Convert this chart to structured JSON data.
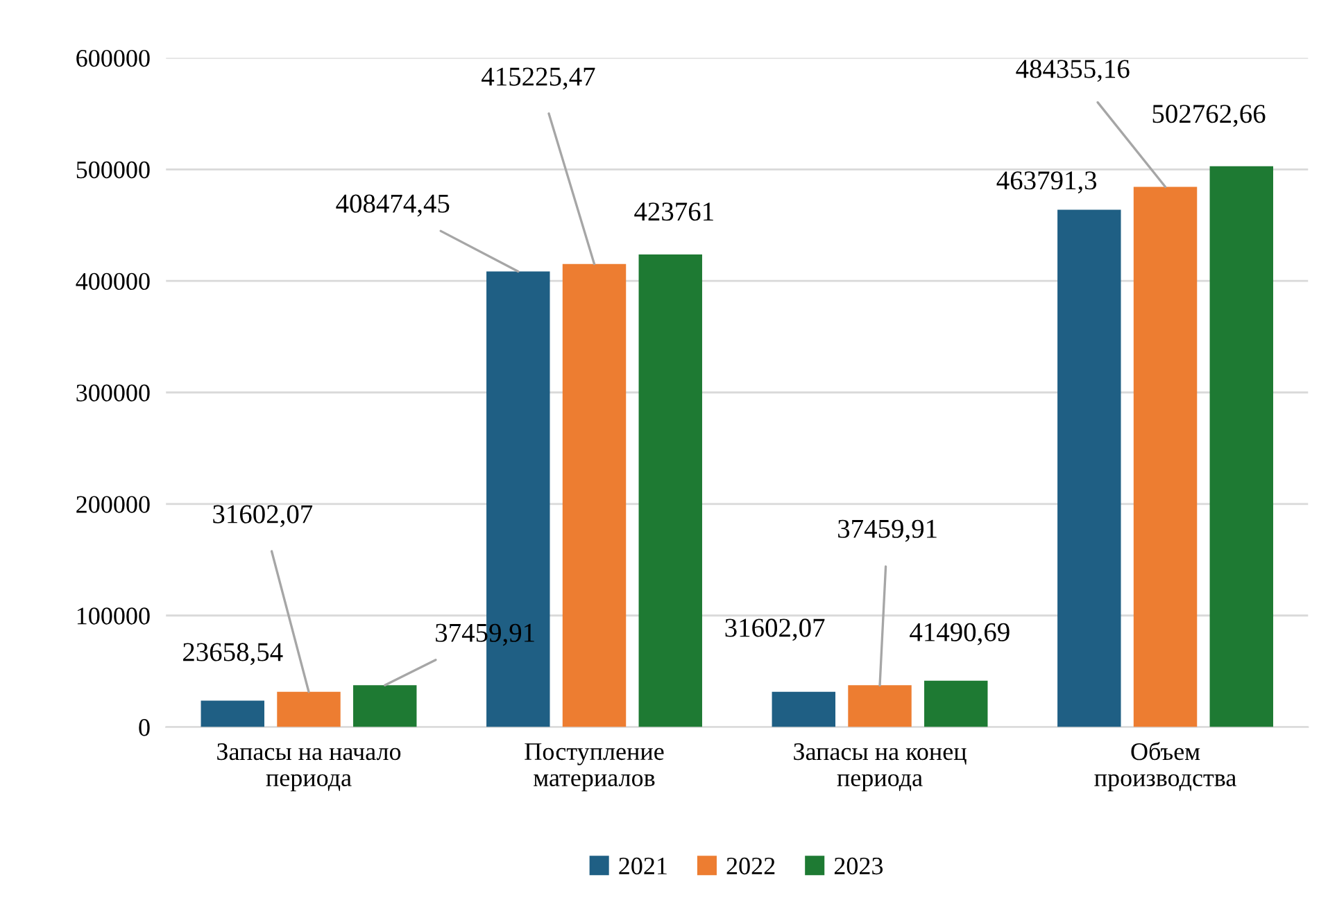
{
  "chart_data": {
    "type": "bar",
    "categories": [
      "Запасы на начало\nпериода",
      "Поступление\nматериалов",
      "Запасы на конец\nпериода",
      "Объем\nпроизводства"
    ],
    "series": [
      {
        "name": "2021",
        "color": "#1f5f84",
        "values": [
          23658.54,
          408474.45,
          31602.07,
          463791.3
        ],
        "value_labels": [
          "23658,54",
          "408474,45",
          "31602,07",
          "463791,3"
        ]
      },
      {
        "name": "2022",
        "color": "#ed7d31",
        "values": [
          31602.07,
          415225.47,
          37459.91,
          484355.16
        ],
        "value_labels": [
          "31602,07",
          "415225,47",
          "37459,91",
          "484355,16"
        ]
      },
      {
        "name": "2023",
        "color": "#1e7a33",
        "values": [
          37459.91,
          423761,
          41490.69,
          502762.66
        ],
        "value_labels": [
          "37459,91",
          "423761",
          "41490,69",
          "502762,66"
        ]
      }
    ],
    "ylim": [
      0,
      600000
    ],
    "yticks": [
      0,
      100000,
      200000,
      300000,
      400000,
      500000,
      600000
    ],
    "grid": "y",
    "legend": "bottom"
  }
}
